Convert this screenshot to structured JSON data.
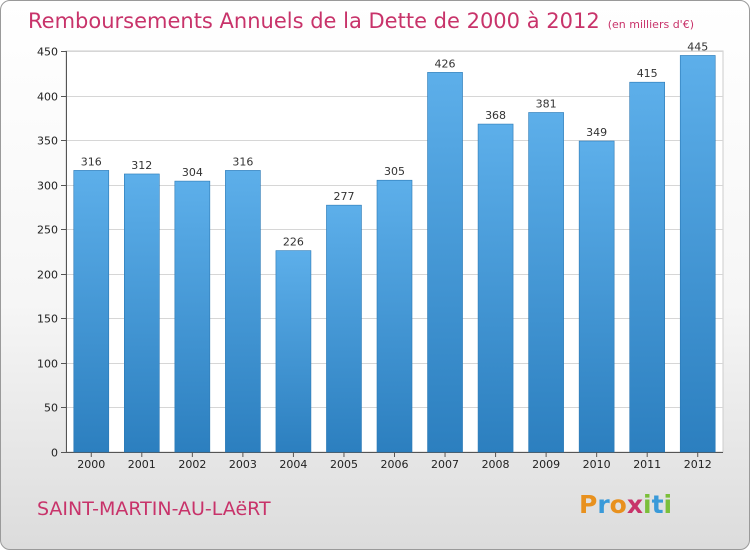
{
  "header": {
    "title": "Remboursements Annuels de la Dette de 2000 à 2012",
    "unit": "(en milliers d'€)"
  },
  "footer": {
    "town": "SAINT-MARTIN-AU-LAëRT",
    "logo_letters": [
      "P",
      "r",
      "o",
      "x",
      "i",
      "t",
      "i"
    ]
  },
  "colors": {
    "accent": "#c8336a",
    "bar_top": "#5dafea",
    "bar_bottom": "#2c7fbf",
    "logo": [
      "#e8911e",
      "#3a9ad9",
      "#e8911e",
      "#c8336a",
      "#7bbf3a",
      "#3a9ad9",
      "#7bbf3a"
    ]
  },
  "chart_data": {
    "type": "bar",
    "title": "Remboursements Annuels de la Dette de 2000 à 2012",
    "categories": [
      "2000",
      "2001",
      "2002",
      "2003",
      "2004",
      "2005",
      "2006",
      "2007",
      "2008",
      "2009",
      "2010",
      "2011",
      "2012"
    ],
    "values": [
      316,
      312,
      304,
      316,
      226,
      277,
      305,
      426,
      368,
      381,
      349,
      415,
      445
    ],
    "yticks": [
      0,
      50,
      100,
      150,
      200,
      250,
      300,
      350,
      400,
      450
    ],
    "ylim": [
      0,
      450
    ],
    "grid": true,
    "xlabel": "",
    "ylabel": ""
  }
}
